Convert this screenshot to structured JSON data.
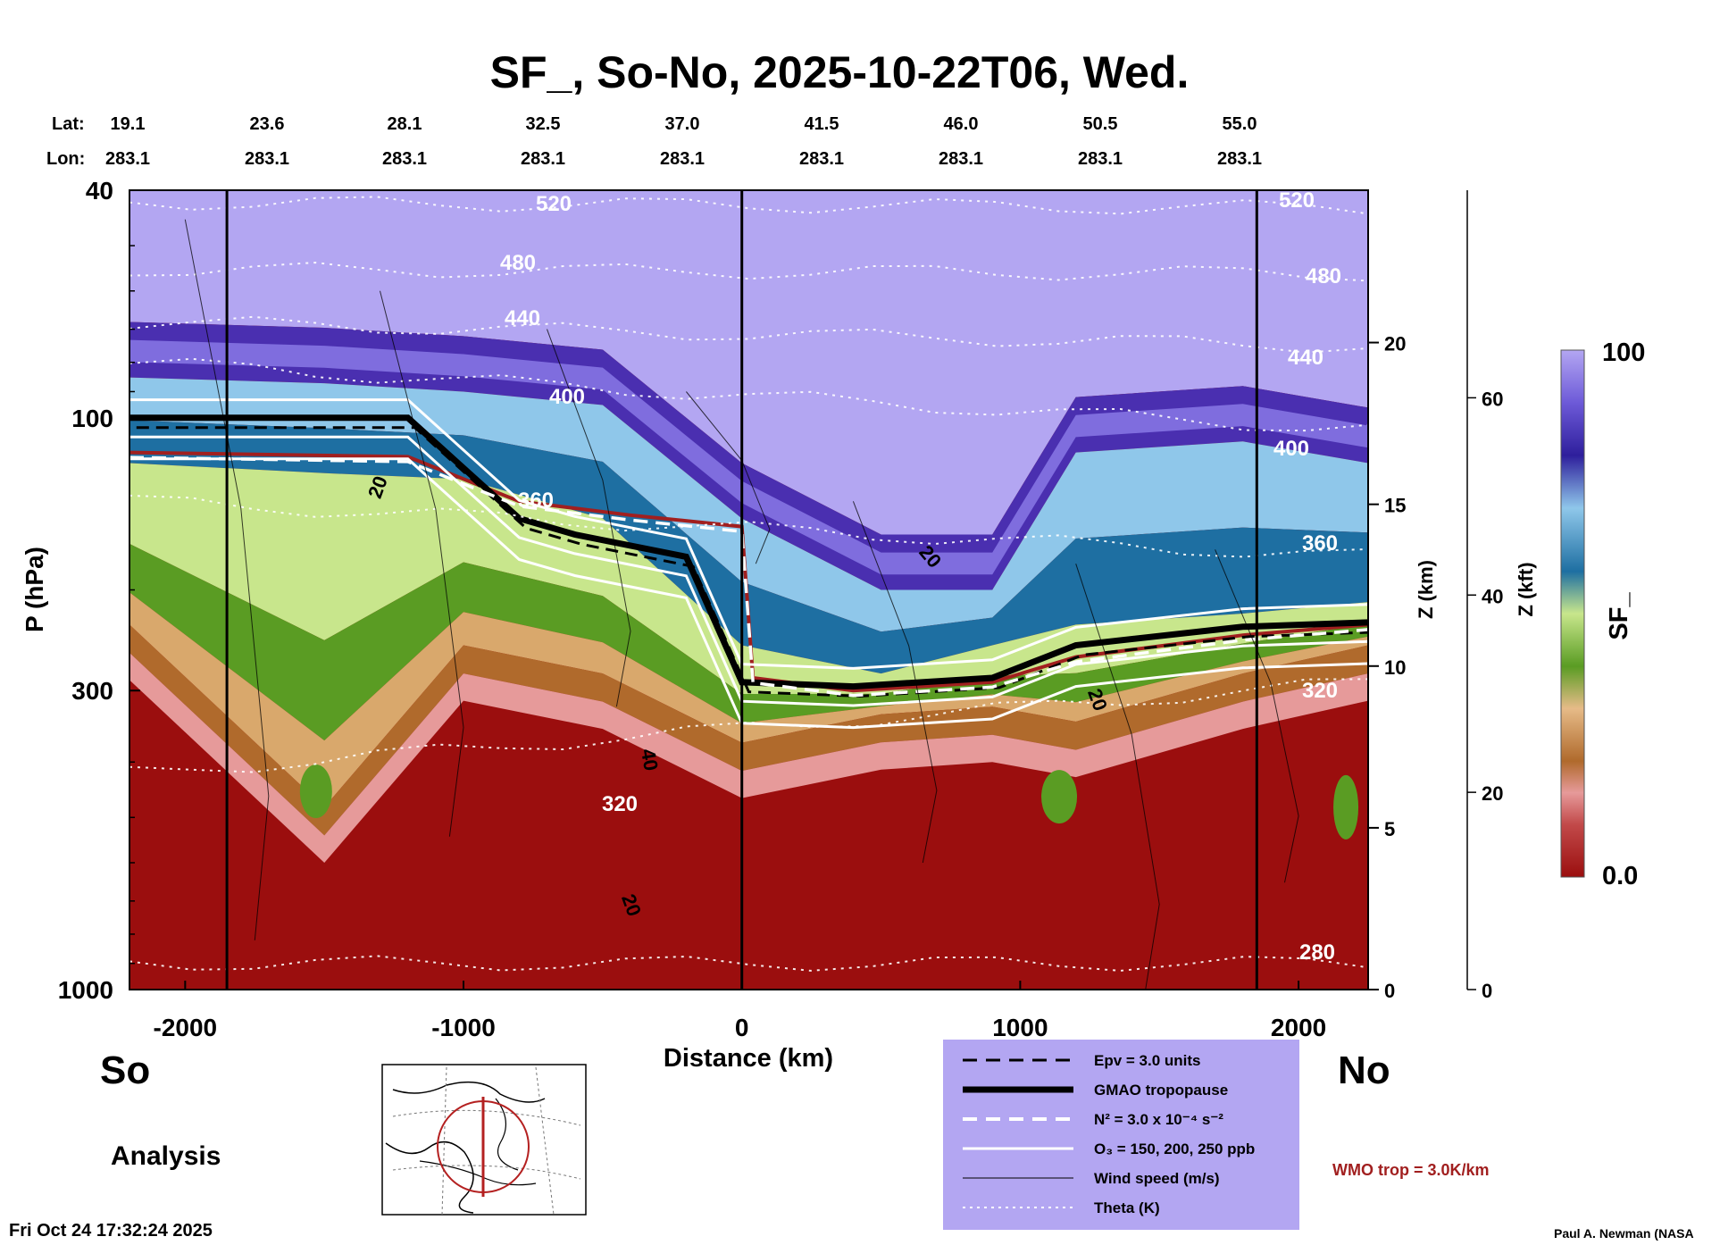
{
  "title": "SF_, So-No, 2025-10-22T06, Wed.",
  "header": {
    "lat_label": "Lat:",
    "lon_label": "Lon:",
    "lats": [
      "19.1",
      "23.6",
      "28.1",
      "32.5",
      "37.0",
      "41.5",
      "46.0",
      "50.5",
      "55.0"
    ],
    "lons": [
      "283.1",
      "283.1",
      "283.1",
      "283.1",
      "283.1",
      "283.1",
      "283.1",
      "283.1",
      "283.1"
    ]
  },
  "chart_data": {
    "type": "heatmap",
    "variable": "SF_",
    "xlabel": "Distance (km)",
    "ylabel": "P (hPa)",
    "zlabel_km": "Z (km)",
    "zlabel_kft": "Z (kft)",
    "xlim": [
      -2200,
      2250
    ],
    "x_ticks": [
      -2000,
      -1000,
      0,
      1000,
      2000
    ],
    "x_tick_labels": [
      "-2000",
      "-1000",
      "0",
      "1000",
      "2000"
    ],
    "ylim_hpa": [
      1000,
      40
    ],
    "y_ticks_hpa": [
      40,
      100,
      300,
      1000
    ],
    "y_tick_labels": [
      "40",
      "100",
      "300",
      "1000"
    ],
    "z_km_ticks": [
      0,
      5,
      10,
      15,
      20
    ],
    "z_km_labels": [
      "0",
      "5",
      "10",
      "15",
      "20"
    ],
    "z_kft_ticks": [
      0,
      20,
      40,
      60
    ],
    "z_kft_labels": [
      "0",
      "20",
      "40",
      "60"
    ],
    "colorbar": {
      "min": 0.0,
      "max": 100,
      "min_label": "0.0",
      "max_label": "100",
      "label": "SF_"
    },
    "vertical_markers_km": [
      -1850,
      0,
      1850
    ],
    "theta_contours_K": [
      {
        "label": "520",
        "pressure_left": 42,
        "pressure_right": 43
      },
      {
        "label": "480",
        "pressure_left": 55,
        "pressure_right": 56
      },
      {
        "label": "440",
        "pressure_left": 68,
        "pressure_right": 75
      },
      {
        "label": "400",
        "pressure_left": 80,
        "pressure_right": 105
      },
      {
        "label": "360",
        "pressure_left": 140,
        "pressure_right": 175
      },
      {
        "label": "320",
        "pressure_left": 420,
        "pressure_right": 290
      },
      {
        "label": "280",
        "pressure_left": 900,
        "pressure_right": 900
      }
    ],
    "wind_speed_labels_ms": [
      "20",
      "40",
      "20",
      "20",
      "20"
    ],
    "sf_field_profile": [
      {
        "x": -2200,
        "p_high": 230,
        "p_mid": 120,
        "p_low": 85
      },
      {
        "x": -1500,
        "p_high": 480,
        "p_mid": 125,
        "p_low": 87
      },
      {
        "x": -1000,
        "p_high": 250,
        "p_mid": 128,
        "p_low": 90
      },
      {
        "x": -500,
        "p_high": 280,
        "p_mid": 150,
        "p_low": 95
      },
      {
        "x": 0,
        "p_high": 370,
        "p_mid": 250,
        "p_low": 150
      },
      {
        "x": 500,
        "p_high": 330,
        "p_mid": 280,
        "p_low": 200
      },
      {
        "x": 900,
        "p_high": 320,
        "p_mid": 250,
        "p_low": 200
      },
      {
        "x": 1200,
        "p_high": 340,
        "p_mid": 230,
        "p_low": 115
      },
      {
        "x": 1800,
        "p_high": 280,
        "p_mid": 220,
        "p_low": 110
      },
      {
        "x": 2250,
        "p_high": 250,
        "p_mid": 210,
        "p_low": 120
      }
    ],
    "tropopause_gmao": [
      {
        "x": -2200,
        "p": 100
      },
      {
        "x": -1200,
        "p": 100
      },
      {
        "x": -800,
        "p": 150
      },
      {
        "x": -600,
        "p": 160
      },
      {
        "x": -200,
        "p": 175
      },
      {
        "x": 0,
        "p": 290
      },
      {
        "x": 400,
        "p": 295
      },
      {
        "x": 900,
        "p": 285
      },
      {
        "x": 1200,
        "p": 250
      },
      {
        "x": 1800,
        "p": 232
      },
      {
        "x": 2250,
        "p": 228
      }
    ],
    "wmo_tropopause": [
      {
        "x": -2200,
        "p": 115
      },
      {
        "x": -1200,
        "p": 117
      },
      {
        "x": -800,
        "p": 140
      },
      {
        "x": -400,
        "p": 148
      },
      {
        "x": 0,
        "p": 155
      },
      {
        "x": 40,
        "p": 285
      },
      {
        "x": 400,
        "p": 300
      },
      {
        "x": 900,
        "p": 290
      },
      {
        "x": 1200,
        "p": 262
      },
      {
        "x": 1800,
        "p": 240
      },
      {
        "x": 2250,
        "p": 230
      }
    ],
    "legend": {
      "items": [
        {
          "style": "dashed-black",
          "label": "Epv = 3.0 units"
        },
        {
          "style": "thick-black",
          "label": "GMAO tropopause"
        },
        {
          "style": "dashed-white",
          "label": "N² = 3.0 x 10⁻⁴ s⁻²"
        },
        {
          "style": "solid-white",
          "label": "O₃ = 150, 200, 250 ppb"
        },
        {
          "style": "thin-black",
          "label": "Wind speed (m/s)"
        },
        {
          "style": "dotted-white",
          "label": "Theta (K)"
        }
      ]
    },
    "wmo_label": "WMO trop = 3.0K/km"
  },
  "labels": {
    "south": "So",
    "north": "No",
    "analysis": "Analysis",
    "timestamp": "Fri Oct 24 17:32:24 2025",
    "credit": "Paul A. Newman (NASA"
  },
  "colors": {
    "purple_light": "#b3a6f2",
    "purple_mid": "#8878e6",
    "purple_dark": "#4a2fb0",
    "blue_light": "#8fc7ea",
    "blue_dark": "#1e6fa2",
    "green_light": "#c8e68c",
    "green_dark": "#5a9c23",
    "tan": "#d9a86c",
    "brown": "#b06a2c",
    "pink": "#e69a9a",
    "red": "#a11515",
    "wmo_red": "#a11f1f"
  }
}
